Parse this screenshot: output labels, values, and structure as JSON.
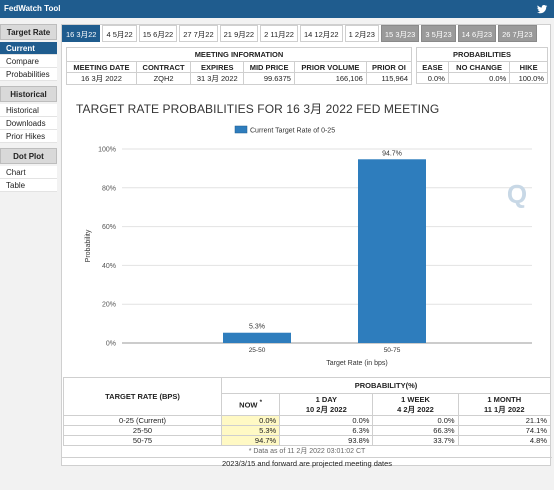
{
  "app": {
    "title": "FedWatch Tool"
  },
  "sidebar": {
    "sections": [
      {
        "title": "Target Rate",
        "items": [
          {
            "label": "Current",
            "active": true
          },
          {
            "label": "Compare"
          },
          {
            "label": "Probabilities"
          }
        ]
      },
      {
        "title": "Historical",
        "items": [
          {
            "label": "Historical"
          },
          {
            "label": "Downloads"
          },
          {
            "label": "Prior Hikes"
          }
        ]
      },
      {
        "title": "Dot Plot",
        "items": [
          {
            "label": "Chart"
          },
          {
            "label": "Table"
          }
        ]
      }
    ]
  },
  "tabs": [
    {
      "label": "16 3月22",
      "state": "active"
    },
    {
      "label": "4 5月22",
      "state": "normal"
    },
    {
      "label": "15 6月22",
      "state": "normal"
    },
    {
      "label": "27 7月22",
      "state": "normal"
    },
    {
      "label": "21 9月22",
      "state": "normal"
    },
    {
      "label": "2 11月22",
      "state": "normal"
    },
    {
      "label": "14 12月22",
      "state": "normal"
    },
    {
      "label": "1 2月23",
      "state": "normal"
    },
    {
      "label": "15 3月23",
      "state": "future"
    },
    {
      "label": "3 5月23",
      "state": "future"
    },
    {
      "label": "14 6月23",
      "state": "future"
    },
    {
      "label": "26 7月23",
      "state": "future"
    }
  ],
  "meeting_info": {
    "title": "MEETING INFORMATION",
    "headers": [
      "MEETING DATE",
      "CONTRACT",
      "EXPIRES",
      "MID PRICE",
      "PRIOR VOLUME",
      "PRIOR OI"
    ],
    "row": [
      "16 3月 2022",
      "ZQH2",
      "31 3月 2022",
      "99.6375",
      "166,106",
      "115,964"
    ]
  },
  "probabilities": {
    "title": "PROBABILITIES",
    "headers": [
      "EASE",
      "NO CHANGE",
      "HIKE"
    ],
    "row": [
      "0.0%",
      "0.0%",
      "100.0%"
    ]
  },
  "heading": "TARGET RATE PROBABILITIES FOR 16 3月 2022 FED MEETING",
  "chart_data": {
    "type": "bar",
    "title": "TARGET RATE PROBABILITIES FOR 16 3月 2022 FED MEETING",
    "legend": "Current Target Rate of 0-25",
    "legend_position": "top",
    "categories": [
      "25-50",
      "50-75"
    ],
    "values": [
      5.3,
      94.7
    ],
    "data_labels": [
      "5.3%",
      "94.7%"
    ],
    "xlabel": "Target Rate (in bps)",
    "ylabel": "Probability",
    "ylim": [
      0,
      100
    ],
    "yticks": [
      "0%",
      "20%",
      "40%",
      "60%",
      "80%",
      "100%"
    ],
    "grid": true,
    "bar_color": "#2e7dbd"
  },
  "bottom_table": {
    "target_header": "TARGET RATE (BPS)",
    "prob_header": "PROBABILITY(%)",
    "columns": [
      {
        "line1": "NOW",
        "line2": ""
      },
      {
        "line1": "1 DAY",
        "line2": "10 2月 2022"
      },
      {
        "line1": "1 WEEK",
        "line2": "4 2月 2022"
      },
      {
        "line1": "1 MONTH",
        "line2": "11 1月 2022"
      }
    ],
    "rows": [
      {
        "rate": "0-25 (Current)",
        "values": [
          "0.0%",
          "0.0%",
          "0.0%",
          "21.1%"
        ]
      },
      {
        "rate": "25-50",
        "values": [
          "5.3%",
          "6.3%",
          "66.3%",
          "74.1%"
        ]
      },
      {
        "rate": "50-75",
        "values": [
          "94.7%",
          "93.8%",
          "33.7%",
          "4.8%"
        ]
      }
    ],
    "note": "* Data as of 11 2月 2022 03:01:02 CT",
    "footer": "2023/3/15 and forward are projected meeting dates"
  }
}
